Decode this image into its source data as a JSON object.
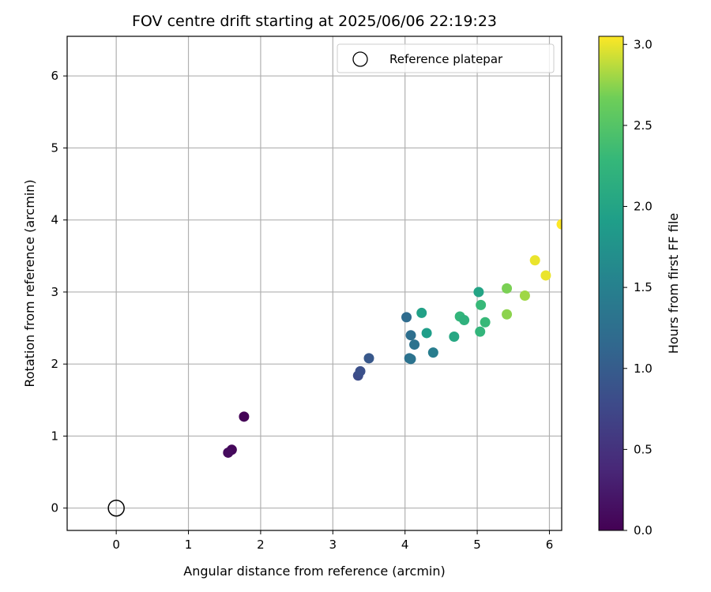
{
  "chart_data": {
    "type": "scatter",
    "title": "FOV centre drift starting at 2025/06/06 22:19:23",
    "xlabel": "Angular distance from reference (arcmin)",
    "ylabel": "Rotation from reference (arcmin)",
    "xlim": [
      -0.68,
      6.17
    ],
    "ylim": [
      -0.31,
      6.55
    ],
    "xticks": [
      "0",
      "1",
      "2",
      "3",
      "4",
      "5",
      "6"
    ],
    "yticks": [
      "0",
      "1",
      "2",
      "3",
      "4",
      "5",
      "6"
    ],
    "grid": true,
    "legend": {
      "position": "top-right",
      "label": "Reference platepar"
    },
    "reference_point": {
      "x": 0,
      "y": 0
    },
    "colorbar": {
      "label": "Hours from first FF file",
      "colormap": "viridis",
      "min": 0.0,
      "max": 3.05,
      "ticks": [
        "0.0",
        "0.5",
        "1.0",
        "1.5",
        "2.0",
        "2.5",
        "3.0"
      ]
    },
    "points": [
      {
        "x": 1.77,
        "y": 1.27,
        "hours": 0.02
      },
      {
        "x": 1.6,
        "y": 0.81,
        "hours": 0.06
      },
      {
        "x": 1.55,
        "y": 0.77,
        "hours": 0.1
      },
      {
        "x": 3.35,
        "y": 1.84,
        "hours": 0.8
      },
      {
        "x": 3.38,
        "y": 1.9,
        "hours": 0.85
      },
      {
        "x": 3.5,
        "y": 2.08,
        "hours": 0.95
      },
      {
        "x": 4.02,
        "y": 2.65,
        "hours": 1.2
      },
      {
        "x": 4.08,
        "y": 2.4,
        "hours": 1.25
      },
      {
        "x": 4.06,
        "y": 2.08,
        "hours": 1.28
      },
      {
        "x": 4.08,
        "y": 2.07,
        "hours": 1.3
      },
      {
        "x": 4.13,
        "y": 2.27,
        "hours": 1.3
      },
      {
        "x": 4.39,
        "y": 2.16,
        "hours": 1.45
      },
      {
        "x": 4.3,
        "y": 2.43,
        "hours": 1.9
      },
      {
        "x": 4.23,
        "y": 2.71,
        "hours": 1.95
      },
      {
        "x": 5.02,
        "y": 3.0,
        "hours": 2.0
      },
      {
        "x": 4.68,
        "y": 2.38,
        "hours": 2.05
      },
      {
        "x": 4.76,
        "y": 2.66,
        "hours": 2.25
      },
      {
        "x": 4.82,
        "y": 2.61,
        "hours": 2.2
      },
      {
        "x": 5.05,
        "y": 2.82,
        "hours": 2.3
      },
      {
        "x": 5.04,
        "y": 2.45,
        "hours": 2.25
      },
      {
        "x": 5.11,
        "y": 2.58,
        "hours": 2.3
      },
      {
        "x": 5.41,
        "y": 3.05,
        "hours": 2.7
      },
      {
        "x": 5.41,
        "y": 2.69,
        "hours": 2.75
      },
      {
        "x": 5.66,
        "y": 2.95,
        "hours": 2.8
      },
      {
        "x": 5.8,
        "y": 3.44,
        "hours": 3.0
      },
      {
        "x": 5.95,
        "y": 3.23,
        "hours": 3.0
      },
      {
        "x": 6.17,
        "y": 3.94,
        "hours": 3.05
      }
    ]
  }
}
